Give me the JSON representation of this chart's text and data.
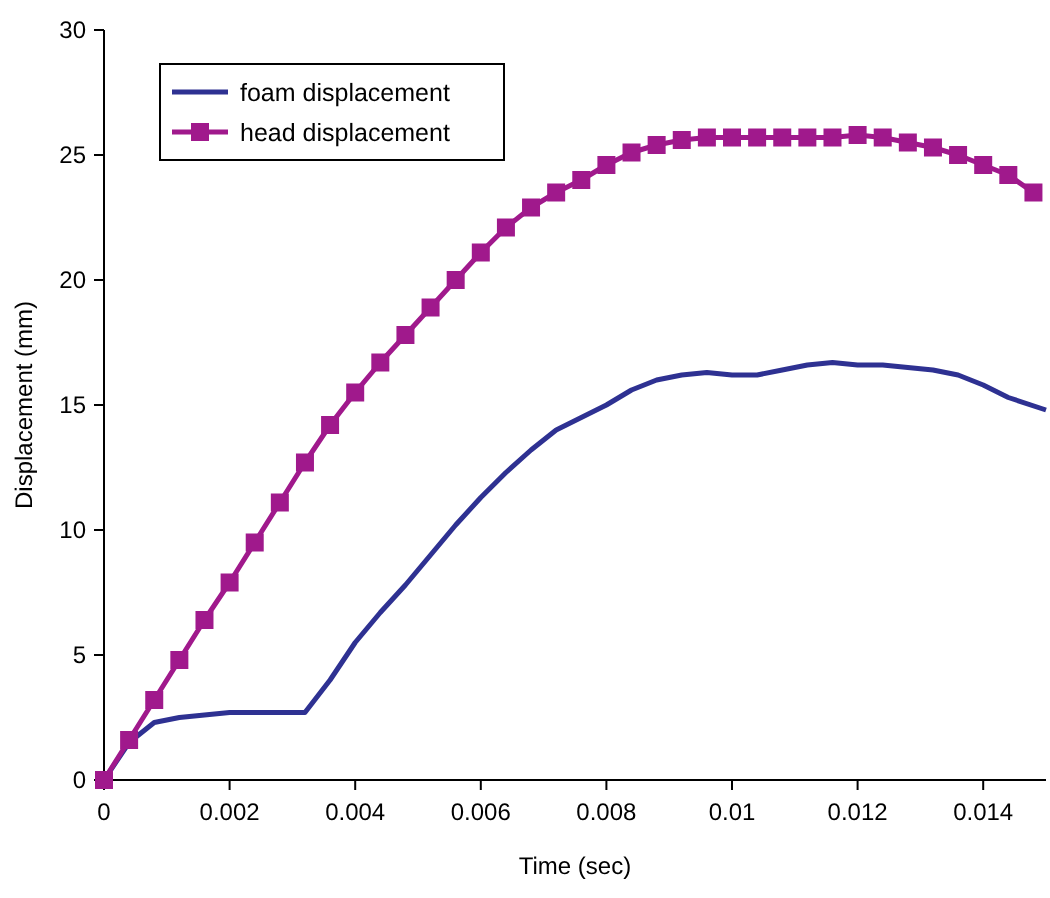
{
  "chart_data": {
    "type": "line",
    "xlabel": "Time (sec)",
    "ylabel": "Displacement (mm)",
    "xlim": [
      0,
      0.015
    ],
    "ylim": [
      0,
      30
    ],
    "xticks": [
      0,
      0.002,
      0.004,
      0.006,
      0.008,
      0.01,
      0.012,
      0.014
    ],
    "yticks": [
      0,
      5,
      10,
      15,
      20,
      25,
      30
    ],
    "grid": false,
    "legend": "top left",
    "line_style": "solid",
    "series": [
      {
        "name": "foam displacement",
        "color": "#2e3192",
        "marker": "none",
        "x": [
          0,
          0.0004,
          0.0008,
          0.0012,
          0.0016,
          0.002,
          0.0032,
          0.0036,
          0.004,
          0.0044,
          0.0048,
          0.0052,
          0.0056,
          0.006,
          0.0064,
          0.0068,
          0.0072,
          0.0076,
          0.008,
          0.0084,
          0.0088,
          0.0092,
          0.0096,
          0.01,
          0.0104,
          0.0108,
          0.0112,
          0.0116,
          0.012,
          0.0124,
          0.0128,
          0.0132,
          0.0136,
          0.014,
          0.0144,
          0.015
        ],
        "values": [
          0,
          1.5,
          2.3,
          2.5,
          2.6,
          2.7,
          2.7,
          4.0,
          5.5,
          6.7,
          7.8,
          9.0,
          10.2,
          11.3,
          12.3,
          13.2,
          14.0,
          14.5,
          15.0,
          15.6,
          16.0,
          16.2,
          16.3,
          16.2,
          16.2,
          16.4,
          16.6,
          16.7,
          16.6,
          16.6,
          16.5,
          16.4,
          16.2,
          15.8,
          15.3,
          14.8
        ]
      },
      {
        "name": "head displacement",
        "color": "#a0198c",
        "marker": "square",
        "x": [
          0,
          0.0004,
          0.0008,
          0.0012,
          0.0016,
          0.002,
          0.0024,
          0.0028,
          0.0032,
          0.0036,
          0.004,
          0.0044,
          0.0048,
          0.0052,
          0.0056,
          0.006,
          0.0064,
          0.0068,
          0.0072,
          0.0076,
          0.008,
          0.0084,
          0.0088,
          0.0092,
          0.0096,
          0.01,
          0.0104,
          0.0108,
          0.0112,
          0.0116,
          0.012,
          0.0124,
          0.0128,
          0.0132,
          0.0136,
          0.014,
          0.0144,
          0.0148
        ],
        "values": [
          0,
          1.6,
          3.2,
          4.8,
          6.4,
          7.9,
          9.5,
          11.1,
          12.7,
          14.2,
          15.5,
          16.7,
          17.8,
          18.9,
          20.0,
          21.1,
          22.1,
          22.9,
          23.5,
          24.0,
          24.6,
          25.1,
          25.4,
          25.6,
          25.7,
          25.7,
          25.7,
          25.7,
          25.7,
          25.7,
          25.8,
          25.7,
          25.5,
          25.3,
          25.0,
          24.6,
          24.2,
          23.5
        ]
      }
    ]
  }
}
